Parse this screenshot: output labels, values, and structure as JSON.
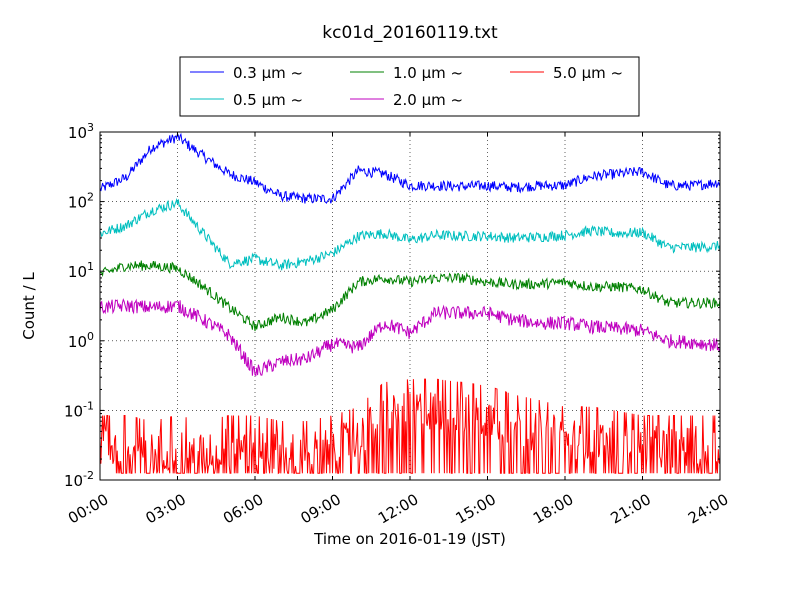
{
  "chart_data": {
    "type": "line",
    "title": "kc01d_20160119.txt",
    "xlabel": "Time on 2016-01-19 (JST)",
    "ylabel": "Count / L",
    "yscale": "log",
    "ylim": [
      0.01,
      1000
    ],
    "xlim": [
      "00:00",
      "24:00"
    ],
    "grid": true,
    "legend_position": "top, above plot",
    "x_ticks": [
      "00:00",
      "03:00",
      "06:00",
      "09:00",
      "12:00",
      "15:00",
      "18:00",
      "21:00",
      "24:00"
    ],
    "y_ticks": [
      {
        "base": "10",
        "exp": "-2"
      },
      {
        "base": "10",
        "exp": "-1"
      },
      {
        "base": "10",
        "exp": "0"
      },
      {
        "base": "10",
        "exp": "1"
      },
      {
        "base": "10",
        "exp": "2"
      },
      {
        "base": "10",
        "exp": "3"
      }
    ],
    "x": [
      "00:00",
      "01:00",
      "02:00",
      "03:00",
      "04:00",
      "05:00",
      "06:00",
      "07:00",
      "08:00",
      "09:00",
      "10:00",
      "11:00",
      "12:00",
      "13:00",
      "14:00",
      "15:00",
      "16:00",
      "17:00",
      "18:00",
      "19:00",
      "20:00",
      "21:00",
      "22:00",
      "23:00",
      "24:00"
    ],
    "series": [
      {
        "name": "0.3 μm ~",
        "color": "#0000ff",
        "noise": 0.15,
        "values": [
          150,
          220,
          600,
          850,
          450,
          250,
          190,
          120,
          110,
          110,
          280,
          250,
          170,
          170,
          165,
          170,
          160,
          170,
          170,
          230,
          250,
          270,
          170,
          170,
          190
        ]
      },
      {
        "name": "0.5 μm ~",
        "color": "#00bfbf",
        "noise": 0.15,
        "values": [
          35,
          45,
          75,
          95,
          35,
          13,
          15,
          12,
          14,
          18,
          32,
          35,
          28,
          33,
          32,
          32,
          30,
          31,
          33,
          38,
          35,
          36,
          22,
          22,
          23
        ]
      },
      {
        "name": "1.0 μm ~",
        "color": "#008000",
        "noise": 0.15,
        "values": [
          9,
          12,
          12,
          11,
          6,
          3,
          1.6,
          2.2,
          1.8,
          2.8,
          7,
          8,
          7,
          8,
          8,
          7,
          6.5,
          6.5,
          7,
          6,
          6,
          5.5,
          3.5,
          3.5,
          3.5
        ]
      },
      {
        "name": "2.0 μm ~",
        "color": "#bf00bf",
        "noise": 0.2,
        "values": [
          3,
          3.2,
          3,
          3.2,
          2,
          1.2,
          0.35,
          0.5,
          0.55,
          0.9,
          0.8,
          1.8,
          1.3,
          2.5,
          2.5,
          2.5,
          2,
          1.8,
          1.8,
          1.6,
          1.5,
          1.4,
          1,
          0.95,
          0.85
        ]
      },
      {
        "name": "5.0 μm ~",
        "color": "#ff0000",
        "noise": 0.6,
        "values": [
          0.03,
          0.03,
          0.025,
          0.03,
          0.025,
          0.03,
          0.03,
          0.025,
          0.025,
          0.03,
          0.04,
          0.09,
          0.1,
          0.1,
          0.09,
          0.08,
          0.06,
          0.05,
          0.04,
          0.04,
          0.035,
          0.03,
          0.03,
          0.03,
          0.03
        ]
      }
    ]
  }
}
